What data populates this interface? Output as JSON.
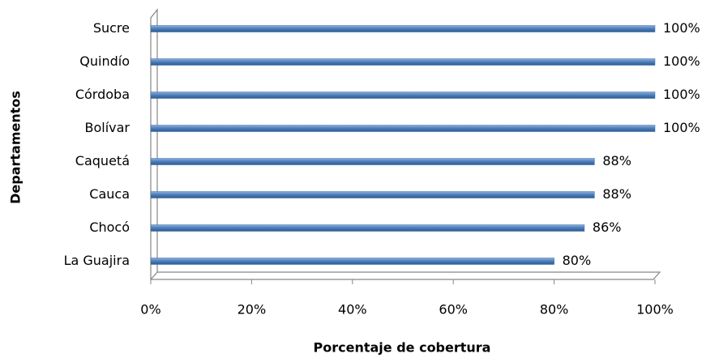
{
  "chart_data": {
    "type": "hbar",
    "x_label": "Porcentaje de cobertura",
    "y_label": "Departamentos",
    "categories": [
      "Sucre",
      "Quindío",
      "Córdoba",
      "Bolívar",
      "Caquetá",
      "Cauca",
      "Chocó",
      "La Guajira"
    ],
    "values": [
      100,
      100,
      100,
      100,
      88,
      88,
      86,
      80
    ],
    "value_labels": [
      "100%",
      "100%",
      "100%",
      "100%",
      "88%",
      "88%",
      "86%",
      "80%"
    ],
    "color": "#4f81bd",
    "xlim": [
      0,
      100
    ],
    "xticks": [
      {
        "value": 0,
        "label": "0%"
      },
      {
        "value": 20,
        "label": "20%"
      },
      {
        "value": 40,
        "label": "40%"
      },
      {
        "value": 60,
        "label": "60%"
      },
      {
        "value": 80,
        "label": "80%"
      },
      {
        "value": 100,
        "label": "100%"
      }
    ],
    "grid": false
  }
}
